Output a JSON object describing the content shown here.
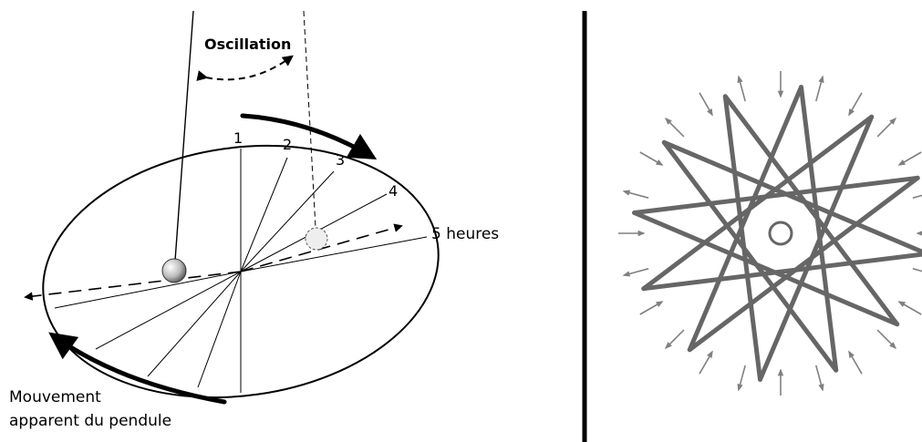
{
  "labels": {
    "oscillation": "Oscillation",
    "hour_1": "1",
    "hour_2": "2",
    "hour_3": "3",
    "hour_4": "4",
    "hour_5": "5 heures",
    "movement_line1": "Mouvement",
    "movement_line2": "apparent du pendule"
  },
  "colors": {
    "ink": "#000000",
    "star": "#666666",
    "arrows": "#808080"
  },
  "star": {
    "points": 12,
    "arrow_count": 24
  }
}
